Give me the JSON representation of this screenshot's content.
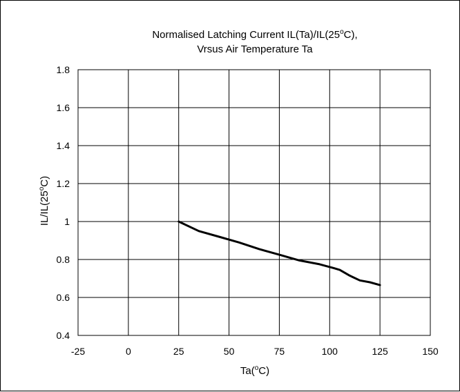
{
  "chart_data": {
    "type": "line",
    "title": {
      "line1": "Normalised Latching Current IL(Ta)/IL(25",
      "line1_sup": "o",
      "line1_end": "C),",
      "line2": "Vrsus Air Temperature Ta"
    },
    "xlabel": {
      "main": "Ta(",
      "sup": "o",
      "end": "C)"
    },
    "ylabel": {
      "main": "IL/IL(25",
      "sup": "o",
      "end": "C)"
    },
    "xlim": [
      -25,
      150
    ],
    "ylim": [
      0.4,
      1.8
    ],
    "x_ticks": [
      -25,
      0,
      25,
      50,
      75,
      100,
      125,
      150
    ],
    "x_tick_labels": [
      "-25",
      "0",
      "25",
      "50",
      "75",
      "100",
      "125",
      "150"
    ],
    "y_ticks": [
      0.4,
      0.6,
      0.8,
      1.0,
      1.2,
      1.4,
      1.6,
      1.8
    ],
    "y_tick_labels": [
      "0.4",
      "0.6",
      "0.8",
      "1",
      "1.2",
      "1.4",
      "1.6",
      "1.8"
    ],
    "grid": true,
    "series": [
      {
        "color": "#000000",
        "x": [
          25,
          35,
          45,
          55,
          65,
          75,
          85,
          95,
          102,
          105,
          110,
          115,
          120,
          125
        ],
        "y": [
          1.0,
          0.95,
          0.92,
          0.89,
          0.855,
          0.825,
          0.795,
          0.775,
          0.755,
          0.745,
          0.715,
          0.69,
          0.68,
          0.665
        ]
      }
    ]
  }
}
